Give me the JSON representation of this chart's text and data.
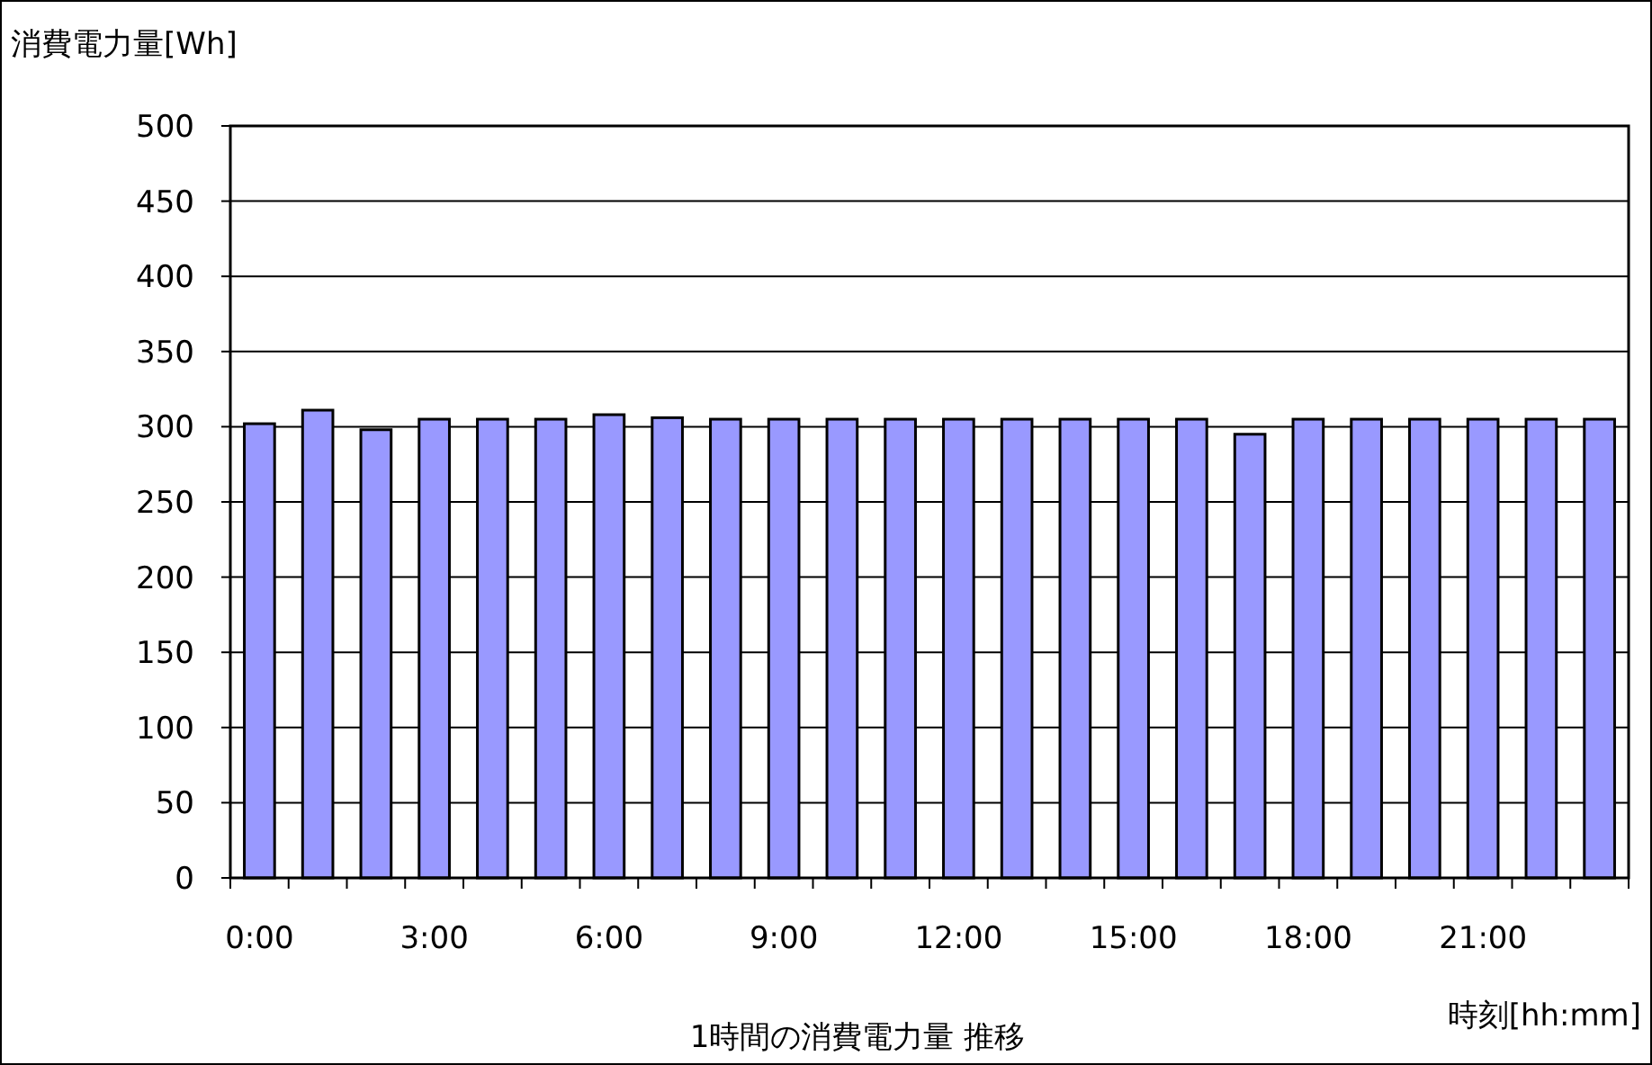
{
  "chart_data": {
    "type": "bar",
    "title": "1時間の消費電力量 推移",
    "xlabel": "時刻[hh:mm]",
    "ylabel": "消費電力量[Wh]",
    "categories": [
      "0:00",
      null,
      null,
      "3:00",
      null,
      null,
      "6:00",
      null,
      null,
      "9:00",
      null,
      null,
      "12:00",
      null,
      null,
      "15:00",
      null,
      null,
      "18:00",
      null,
      null,
      "21:00",
      null,
      null
    ],
    "values": [
      302,
      311,
      298,
      305,
      305,
      305,
      308,
      306,
      305,
      305,
      305,
      305,
      305,
      305,
      305,
      305,
      305,
      295,
      305,
      305,
      305,
      305,
      305,
      305
    ],
    "color": "#9999ff",
    "ylim": [
      0,
      500
    ],
    "yticks": [
      0,
      50,
      100,
      150,
      200,
      250,
      300,
      350,
      400,
      450,
      500
    ],
    "grid": "y"
  }
}
